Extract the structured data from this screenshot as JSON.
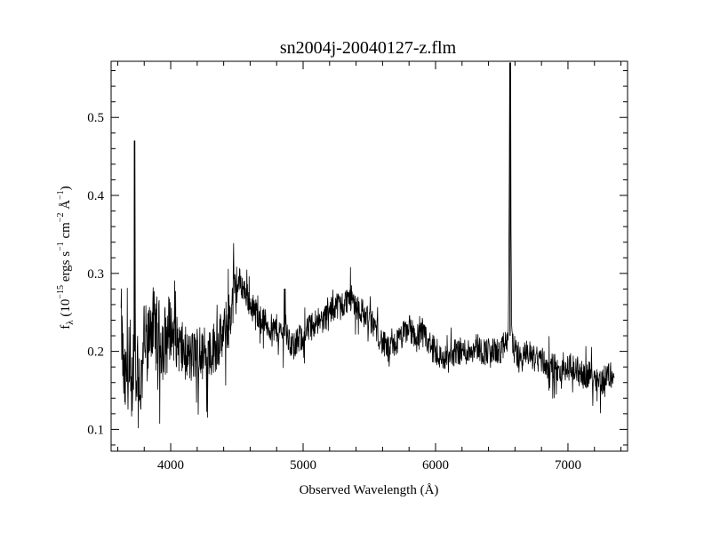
{
  "chart_data": {
    "type": "line",
    "title": "sn2004j-20040127-z.flm",
    "xlabel": "Observed Wavelength (Å)",
    "ylabel": {
      "f": "f",
      "lambda_sub": "λ",
      "paren_open": " (10",
      "exp1": "−15",
      "ergs_s": " ergs s",
      "exp2": "−1",
      "cm": " cm",
      "exp3": "−2",
      "angstrom": " Å",
      "exp4": "−1",
      "paren_close": ")"
    },
    "xlim": [
      3550,
      7450
    ],
    "ylim": [
      0.072,
      0.572
    ],
    "xticks": [
      4000,
      5000,
      6000,
      7000
    ],
    "xtick_labels": [
      "4000",
      "5000",
      "6000",
      "7000"
    ],
    "yticks": [
      0.1,
      0.2,
      0.3,
      0.4,
      0.5
    ],
    "ytick_labels": [
      "0.1",
      "0.2",
      "0.3",
      "0.4",
      "0.5"
    ],
    "grid": false,
    "series": [
      {
        "x": [
          3625,
          3650,
          3675,
          3700,
          3720,
          3727,
          3735,
          3750,
          3775,
          3800,
          3825,
          3850,
          3875,
          3900,
          3950,
          4000,
          4050,
          4100,
          4150,
          4200,
          4250,
          4300,
          4350,
          4400,
          4450,
          4480,
          4500,
          4520,
          4550,
          4580,
          4600,
          4650,
          4700,
          4750,
          4800,
          4850,
          4861,
          4875,
          4900,
          4950,
          5000,
          5050,
          5100,
          5150,
          5200,
          5250,
          5300,
          5350,
          5400,
          5450,
          5500,
          5550,
          5600,
          5650,
          5700,
          5750,
          5800,
          5850,
          5900,
          5950,
          6000,
          6050,
          6100,
          6150,
          6200,
          6250,
          6300,
          6350,
          6400,
          6450,
          6500,
          6530,
          6550,
          6563,
          6575,
          6600,
          6650,
          6700,
          6750,
          6800,
          6850,
          6900,
          6950,
          7000,
          7050,
          7100,
          7150,
          7200,
          7250,
          7300,
          7350
        ],
        "y": [
          0.24,
          0.15,
          0.18,
          0.13,
          0.2,
          0.47,
          0.16,
          0.19,
          0.15,
          0.22,
          0.2,
          0.24,
          0.23,
          0.22,
          0.21,
          0.23,
          0.21,
          0.2,
          0.19,
          0.2,
          0.19,
          0.2,
          0.21,
          0.22,
          0.25,
          0.27,
          0.28,
          0.29,
          0.28,
          0.27,
          0.26,
          0.25,
          0.24,
          0.23,
          0.23,
          0.22,
          0.28,
          0.22,
          0.21,
          0.21,
          0.22,
          0.23,
          0.24,
          0.24,
          0.25,
          0.26,
          0.26,
          0.27,
          0.26,
          0.25,
          0.24,
          0.23,
          0.21,
          0.2,
          0.21,
          0.22,
          0.23,
          0.22,
          0.22,
          0.21,
          0.2,
          0.19,
          0.19,
          0.2,
          0.2,
          0.2,
          0.21,
          0.2,
          0.2,
          0.2,
          0.2,
          0.21,
          0.22,
          0.57,
          0.22,
          0.2,
          0.19,
          0.2,
          0.19,
          0.19,
          0.18,
          0.18,
          0.17,
          0.18,
          0.18,
          0.17,
          0.17,
          0.17,
          0.16,
          0.17,
          0.17
        ]
      }
    ]
  },
  "colors": {
    "line": "#000000",
    "frame": "#000000",
    "background": "#ffffff"
  }
}
